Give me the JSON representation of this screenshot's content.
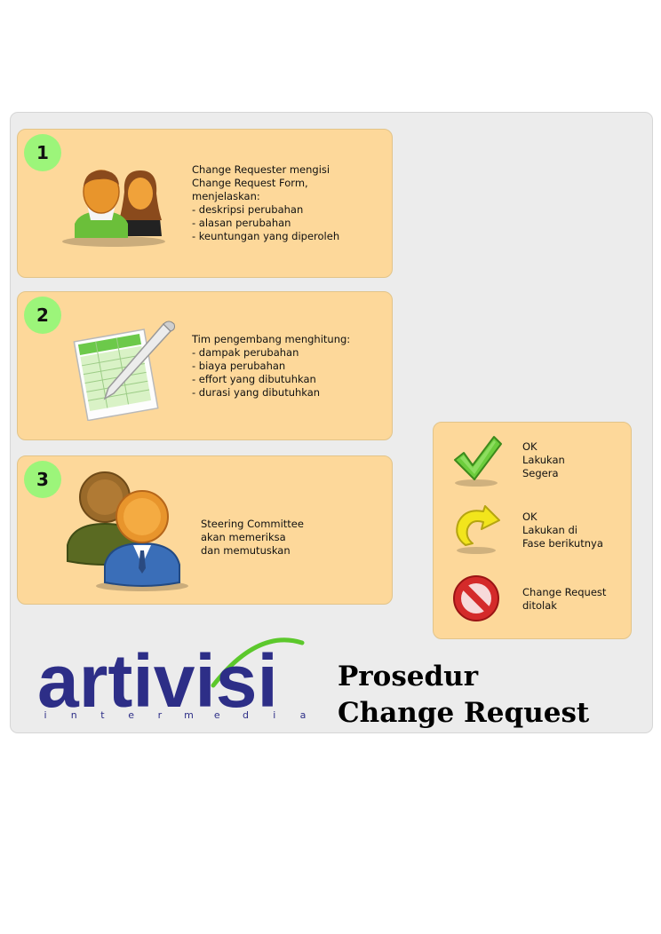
{
  "steps": [
    {
      "number": "1",
      "icon": "users-icon",
      "text": "Change Requester mengisi\nChange Request Form,\nmenjelaskan:\n- deskripsi perubahan\n- alasan perubahan\n- keuntungan yang diperoleh"
    },
    {
      "number": "2",
      "icon": "spreadsheet-pen-icon",
      "text": "Tim pengembang menghitung:\n- dampak perubahan\n- biaya perubahan\n- effort yang dibutuhkan\n- durasi yang dibutuhkan"
    },
    {
      "number": "3",
      "icon": "committee-icon",
      "text": "Steering Committee\nakan memeriksa\ndan memutuskan"
    }
  ],
  "legend": [
    {
      "icon": "checkmark-icon",
      "text": "OK\nLakukan\nSegera"
    },
    {
      "icon": "redo-arrow-icon",
      "text": "OK\nLakukan di\nFase berikutnya"
    },
    {
      "icon": "no-entry-icon",
      "text": "Change Request\nditolak"
    }
  ],
  "logo": {
    "word": "artivisi",
    "sub": [
      "i",
      "n",
      "t",
      "e",
      "r",
      "m",
      "e",
      "d",
      "i",
      "a"
    ]
  },
  "title": {
    "line1": "Prosedur",
    "line2": "Change Request"
  },
  "colors": {
    "card": "#fdd89a",
    "badge": "#9cf57a",
    "logo": "#2d2e87",
    "logo_accent": "#5cc82c"
  }
}
